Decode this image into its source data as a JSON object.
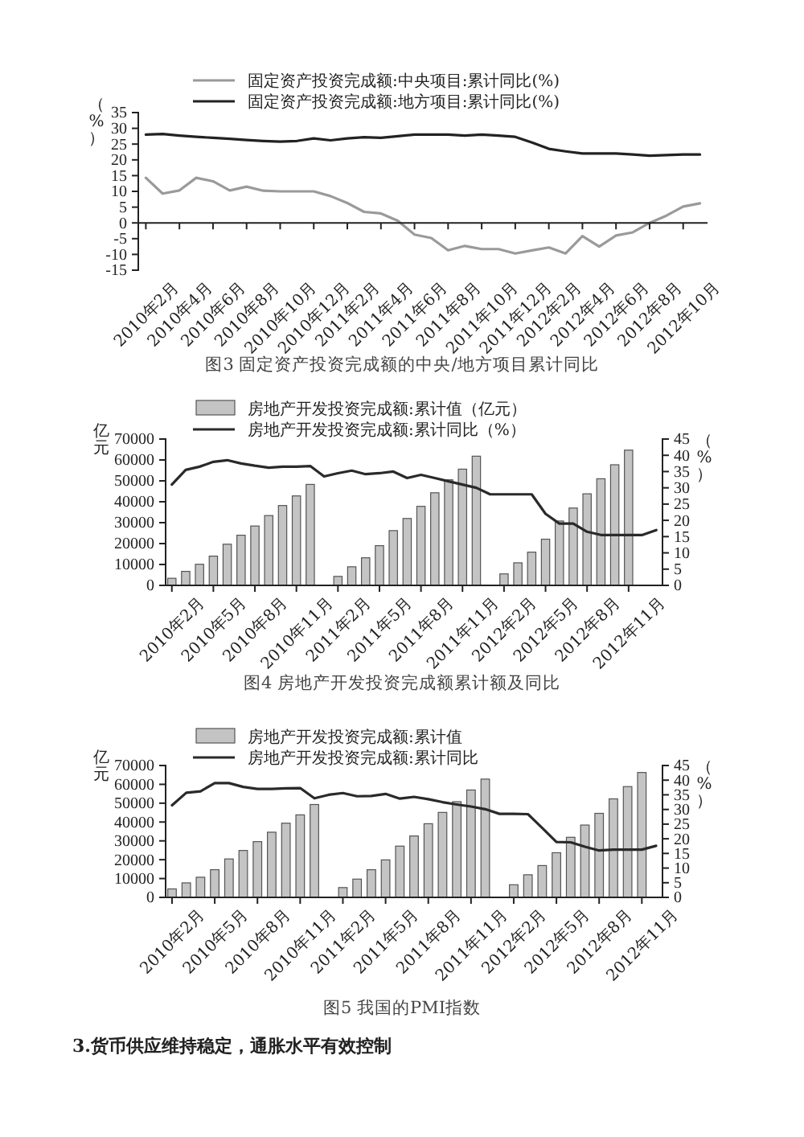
{
  "chart_data": [
    {
      "type": "line",
      "categories": [
        "2010年2月",
        null,
        "2010年4月",
        null,
        "2010年6月",
        null,
        "2010年8月",
        null,
        "2010年10月",
        null,
        "2010年12月",
        null,
        "2011年2月",
        null,
        "2011年4月",
        null,
        "2011年6月",
        null,
        "2011年8月",
        null,
        "2011年10月",
        null,
        "2011年12月",
        null,
        "2012年2月",
        null,
        "2012年4月",
        null,
        "2012年6月",
        null,
        "2012年8月",
        null,
        "2012年10月",
        null
      ],
      "ylim": [
        -15,
        35
      ],
      "yticks": [
        -15,
        -10,
        -5,
        0,
        5,
        10,
        15,
        20,
        25,
        30,
        35
      ],
      "ylabel": "（%）",
      "legend": "top",
      "series": [
        {
          "name": "固定资产投资完成额:中央项目:累计同比(%)",
          "color": "#9a9a9a",
          "values": [
            14.3,
            9.3,
            10.3,
            14.3,
            13.2,
            10.3,
            11.5,
            10.2,
            10,
            10,
            10,
            8.5,
            6.3,
            3.5,
            3,
            0.7,
            -3.7,
            -4.8,
            -8.7,
            -7.3,
            -8.3,
            -8.3,
            -9.7,
            -8.7,
            -7.8,
            -9.7,
            -4.2,
            -7.5,
            -4,
            -3,
            0,
            2.3,
            5.2,
            6.2
          ]
        },
        {
          "name": "固定资产投资完成额:地方项目:累计同比(%)",
          "color": "#222222",
          "values": [
            28,
            28.2,
            27.7,
            27.3,
            27,
            26.7,
            26.3,
            26,
            25.8,
            26,
            26.8,
            26.2,
            26.8,
            27.2,
            27,
            27.5,
            28,
            28,
            28,
            27.7,
            28,
            27.7,
            27.3,
            25.5,
            23.5,
            22.7,
            22,
            22,
            22,
            21.7,
            21.3,
            21.5,
            21.7,
            21.7
          ]
        }
      ],
      "annotations": [
        "图3 固定资产投资完成额的中央/地方项目累计同比"
      ]
    },
    {
      "type": "bar",
      "categories": [
        "2010年2月",
        null,
        null,
        "2010年5月",
        null,
        null,
        "2010年8月",
        null,
        null,
        "2010年11月",
        null,
        null,
        "2011年2月",
        null,
        null,
        "2011年5月",
        null,
        null,
        "2011年8月",
        null,
        null,
        "2011年11月",
        null,
        null,
        "2012年2月",
        null,
        null,
        "2012年5月",
        null,
        null,
        "2012年8月",
        null,
        null,
        "2012年11月",
        null,
        null
      ],
      "ylim": [
        0,
        70000
      ],
      "yticks": [
        0,
        10000,
        20000,
        30000,
        40000,
        50000,
        60000,
        70000
      ],
      "y2lim": [
        0,
        45
      ],
      "y2ticks": [
        0,
        5,
        10,
        15,
        20,
        25,
        30,
        35,
        40,
        45
      ],
      "ylabel": "亿元",
      "y2label": "（%）",
      "legend": "top",
      "series": [
        {
          "name": "房地产开发投资完成额:累计值（亿元）",
          "color": "#c4c4c4",
          "values": [
            3400,
            6700,
            10100,
            14000,
            19700,
            24000,
            28400,
            33400,
            38200,
            42800,
            48300,
            null,
            4300,
            8900,
            13200,
            19000,
            26200,
            32000,
            37800,
            44300,
            50500,
            55600,
            61800,
            null,
            5500,
            10800,
            15900,
            22100,
            30800,
            37000,
            43800,
            51000,
            57700,
            64700,
            null,
            null
          ]
        },
        {
          "type": "line",
          "axis": "y2",
          "name": "房地产开发投资完成额:累计同比（%）",
          "color": "#2a2a2a",
          "values": [
            31,
            35.5,
            36.5,
            38,
            38.5,
            37.5,
            36.8,
            36.2,
            36.5,
            36.5,
            36.7,
            33.5,
            34.5,
            35.3,
            34.2,
            34.5,
            35,
            33,
            34,
            33,
            32,
            31,
            30,
            28,
            28,
            28,
            28,
            22,
            19,
            19,
            16.5,
            15.5,
            15.5,
            15.5,
            15.5,
            17
          ]
        }
      ],
      "annotations": [
        "图4 房地产开发投资完成额累计额及同比"
      ]
    },
    {
      "type": "bar",
      "categories": [
        "2010年2月",
        null,
        null,
        "2010年5月",
        null,
        null,
        "2010年8月",
        null,
        null,
        "2010年11月",
        null,
        null,
        "2011年2月",
        null,
        null,
        "2011年5月",
        null,
        null,
        "2011年8月",
        null,
        null,
        "2011年11月",
        null,
        null,
        "2012年2月",
        null,
        null,
        "2012年5月",
        null,
        null,
        "2012年8月",
        null,
        null,
        "2012年11月",
        null
      ],
      "ylim": [
        0,
        70000
      ],
      "yticks": [
        0,
        10000,
        20000,
        30000,
        40000,
        50000,
        60000,
        70000
      ],
      "y2lim": [
        0,
        45
      ],
      "y2ticks": [
        0,
        5,
        10,
        15,
        20,
        25,
        30,
        35,
        40,
        45
      ],
      "ylabel": "亿元",
      "y2label": "（%）",
      "legend": "top",
      "series": [
        {
          "name": "房地产开发投资完成额:累计值",
          "color": "#c4c4c4",
          "values": [
            4500,
            7700,
            10700,
            14700,
            20400,
            24900,
            29600,
            34600,
            39400,
            43800,
            49300,
            null,
            5200,
            9700,
            14700,
            19900,
            27200,
            32600,
            39100,
            45100,
            50800,
            57000,
            62800,
            null,
            6700,
            12000,
            16900,
            23700,
            31900,
            38400,
            44600,
            52300,
            58800,
            66300,
            null
          ]
        },
        {
          "type": "line",
          "axis": "y2",
          "name": "房地产开发投资完成额:累计同比",
          "color": "#2a2a2a",
          "values": [
            31.4,
            35.7,
            36.2,
            39,
            39,
            37.7,
            37,
            37,
            37.2,
            37.3,
            33.8,
            35,
            35.6,
            34.5,
            34.6,
            35.3,
            33.7,
            34.3,
            33.5,
            32.5,
            31.7,
            31,
            30.1,
            28.5,
            28.5,
            28.4,
            23.7,
            18.9,
            18.8,
            17.3,
            16,
            16.3,
            16.3,
            16.3,
            17.6
          ]
        }
      ],
      "annotations": [
        "图5 我国的PMI指数",
        "3.货币供应维持稳定，通胀水平有效控制"
      ]
    }
  ]
}
